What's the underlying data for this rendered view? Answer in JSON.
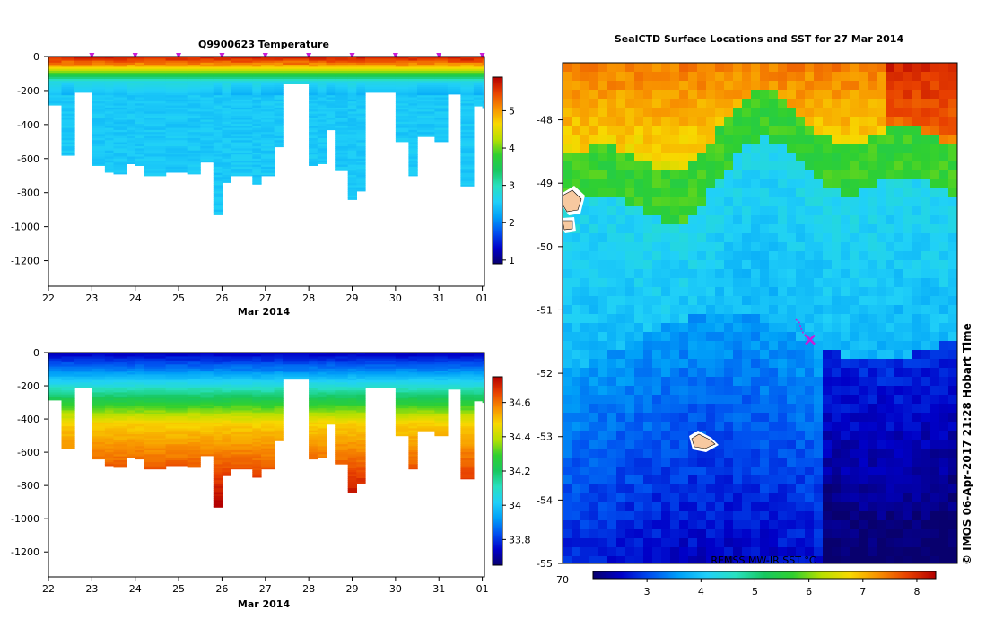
{
  "chart_data": [
    {
      "type": "heatmap",
      "panel": "top-left",
      "title": "Q9900623  Temperature",
      "xlabel": "Mar 2014",
      "x_ticks": [
        "22",
        "23",
        "24",
        "25",
        "26",
        "27",
        "28",
        "29",
        "30",
        "31",
        "01"
      ],
      "y_ticks": [
        "0",
        "-200",
        "-400",
        "-600",
        "-800",
        "-1000",
        "-1200"
      ],
      "xlim": [
        22,
        32.05
      ],
      "ylim": [
        -1350,
        0
      ],
      "colorbar": {
        "ticks": [
          "1",
          "2",
          "3",
          "4",
          "5"
        ],
        "range": [
          0.9,
          5.9
        ]
      },
      "profile_markers_at_day": [
        23,
        24,
        25,
        26,
        27,
        28,
        29,
        30,
        31,
        32
      ],
      "profiles": [
        {
          "day": 22.0,
          "depth": -285
        },
        {
          "day": 22.3,
          "depth": -580
        },
        {
          "day": 22.6,
          "depth": -210
        },
        {
          "day": 23.0,
          "depth": -640
        },
        {
          "day": 23.3,
          "depth": -680
        },
        {
          "day": 23.5,
          "depth": -690
        },
        {
          "day": 23.8,
          "depth": -630
        },
        {
          "day": 24.0,
          "depth": -640
        },
        {
          "day": 24.2,
          "depth": -700
        },
        {
          "day": 24.7,
          "depth": -680
        },
        {
          "day": 25.2,
          "depth": -690
        },
        {
          "day": 25.5,
          "depth": -620
        },
        {
          "day": 25.8,
          "depth": -930
        },
        {
          "day": 26.0,
          "depth": -740
        },
        {
          "day": 26.2,
          "depth": -700
        },
        {
          "day": 26.7,
          "depth": -750
        },
        {
          "day": 26.9,
          "depth": -700
        },
        {
          "day": 27.2,
          "depth": -530
        },
        {
          "day": 27.4,
          "depth": -160
        },
        {
          "day": 28.0,
          "depth": -640
        },
        {
          "day": 28.2,
          "depth": -630
        },
        {
          "day": 28.4,
          "depth": -430
        },
        {
          "day": 28.6,
          "depth": -670
        },
        {
          "day": 28.9,
          "depth": -840
        },
        {
          "day": 29.1,
          "depth": -790
        },
        {
          "day": 29.3,
          "depth": -210
        },
        {
          "day": 30.0,
          "depth": -500
        },
        {
          "day": 30.3,
          "depth": -700
        },
        {
          "day": 30.5,
          "depth": -470
        },
        {
          "day": 30.9,
          "depth": -500
        },
        {
          "day": 31.2,
          "depth": -220
        },
        {
          "day": 31.5,
          "depth": -760
        },
        {
          "day": 31.8,
          "depth": -290
        },
        {
          "day": 32.0,
          "depth": -300
        }
      ]
    },
    {
      "type": "heatmap",
      "panel": "bottom-left",
      "title": "",
      "xlabel": "Mar 2014",
      "x_ticks": [
        "22",
        "23",
        "24",
        "25",
        "26",
        "27",
        "28",
        "29",
        "30",
        "31",
        "01"
      ],
      "y_ticks": [
        "0",
        "-200",
        "-400",
        "-600",
        "-800",
        "-1000",
        "-1200"
      ],
      "xlim": [
        22,
        32.05
      ],
      "ylim": [
        -1350,
        0
      ],
      "colorbar": {
        "ticks": [
          "33.8",
          "34",
          "34.2",
          "34.4",
          "34.6"
        ],
        "range": [
          33.65,
          34.75
        ]
      }
    },
    {
      "type": "heatmap",
      "panel": "right",
      "title": "SealCTD Surface Locations and SST for 27 Mar 2014",
      "lat_ticks": [
        "-48",
        "-49",
        "-50",
        "-51",
        "-52",
        "-53",
        "-54",
        "-55"
      ],
      "lat_range": [
        -55,
        -47.1
      ],
      "lon_tick_left": "70",
      "colorbar_label": "REMSS MW-IR SST °C",
      "colorbar": {
        "ticks": [
          "3",
          "4",
          "5",
          "6",
          "7",
          "8"
        ],
        "range": [
          2.0,
          8.35
        ]
      },
      "seal_track": [
        {
          "lon": 73.25,
          "lat": -51.15
        },
        {
          "lon": 73.3,
          "lat": -51.2
        },
        {
          "lon": 73.32,
          "lat": -51.28
        },
        {
          "lon": 73.35,
          "lat": -51.36
        },
        {
          "lon": 73.4,
          "lat": -51.42
        },
        {
          "lon": 73.45,
          "lat": -51.47
        }
      ]
    }
  ],
  "footer": {
    "credit": "© IMOS 06-Apr-2017 21:28 Hobart Time"
  },
  "colors": {
    "ramp": [
      "#08006e",
      "#0000c8",
      "#0050f0",
      "#00a0f8",
      "#20d0f8",
      "#28e0c0",
      "#18c860",
      "#30d030",
      "#b8e000",
      "#f8d800",
      "#f89000",
      "#e84000",
      "#b40000"
    ],
    "land": "#f7c9a0",
    "track": "#c81ed8"
  }
}
